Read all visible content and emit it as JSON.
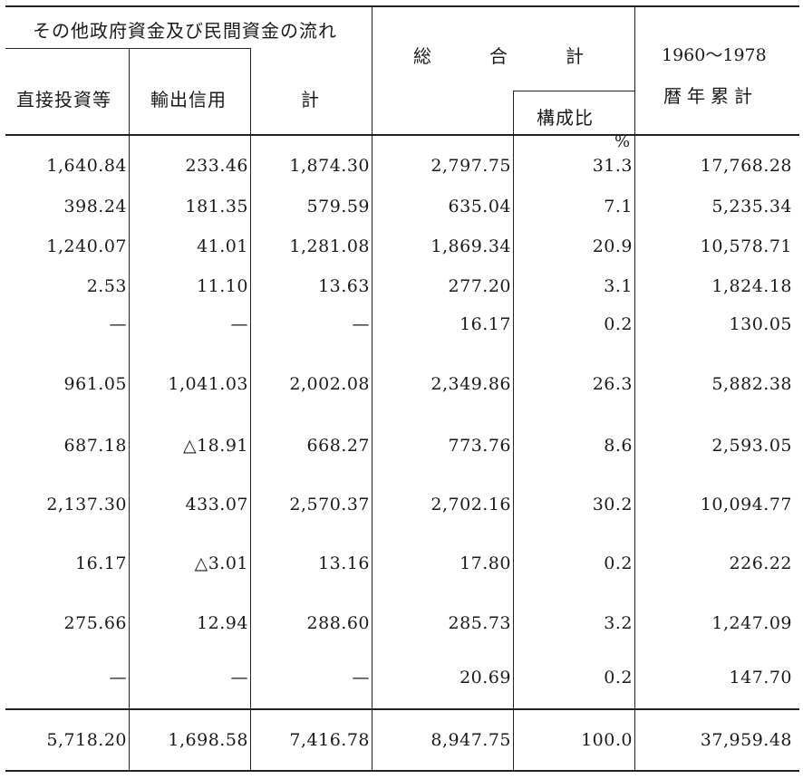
{
  "header": {
    "group_title": "その他政府資金及び民間資金の流れ",
    "col_direct": "直接投資等",
    "col_export": "輸出信用",
    "col_sub_total": "計",
    "col_total": "総　　　合　　　計",
    "col_ratio": "構成比",
    "col_cum_years": "1960〜1978",
    "col_cum_label": "暦年累計",
    "ratio_unit": "%"
  },
  "rows": [
    {
      "direct": "1,640.84",
      "export": "233.46",
      "sub_total": "1,874.30",
      "total": "2,797.75",
      "ratio": "31.3",
      "cumulative": "17,768.28"
    },
    {
      "direct": "398.24",
      "export": "181.35",
      "sub_total": "579.59",
      "total": "635.04",
      "ratio": "7.1",
      "cumulative": "5,235.34"
    },
    {
      "direct": "1,240.07",
      "export": "41.01",
      "sub_total": "1,281.08",
      "total": "1,869.34",
      "ratio": "20.9",
      "cumulative": "10,578.71"
    },
    {
      "direct": "2.53",
      "export": "11.10",
      "sub_total": "13.63",
      "total": "277.20",
      "ratio": "3.1",
      "cumulative": "1,824.18"
    },
    {
      "direct": "—",
      "export": "—",
      "sub_total": "—",
      "total": "16.17",
      "ratio": "0.2",
      "cumulative": "130.05"
    },
    {
      "direct": "961.05",
      "export": "1,041.03",
      "sub_total": "2,002.08",
      "total": "2,349.86",
      "ratio": "26.3",
      "cumulative": "5,882.38"
    },
    {
      "direct": "687.18",
      "export": "△18.91",
      "sub_total": "668.27",
      "total": "773.76",
      "ratio": "8.6",
      "cumulative": "2,593.05"
    },
    {
      "direct": "2,137.30",
      "export": "433.07",
      "sub_total": "2,570.37",
      "total": "2,702.16",
      "ratio": "30.2",
      "cumulative": "10,094.77"
    },
    {
      "direct": "16.17",
      "export": "△3.01",
      "sub_total": "13.16",
      "total": "17.80",
      "ratio": "0.2",
      "cumulative": "226.22"
    },
    {
      "direct": "275.66",
      "export": "12.94",
      "sub_total": "288.60",
      "total": "285.73",
      "ratio": "3.2",
      "cumulative": "1,247.09"
    },
    {
      "direct": "—",
      "export": "—",
      "sub_total": "—",
      "total": "20.69",
      "ratio": "0.2",
      "cumulative": "147.70"
    }
  ],
  "totals": {
    "direct": "5,718.20",
    "export": "1,698.58",
    "sub_total": "7,416.78",
    "total": "8,947.75",
    "ratio": "100.0",
    "cumulative": "37,959.48"
  }
}
